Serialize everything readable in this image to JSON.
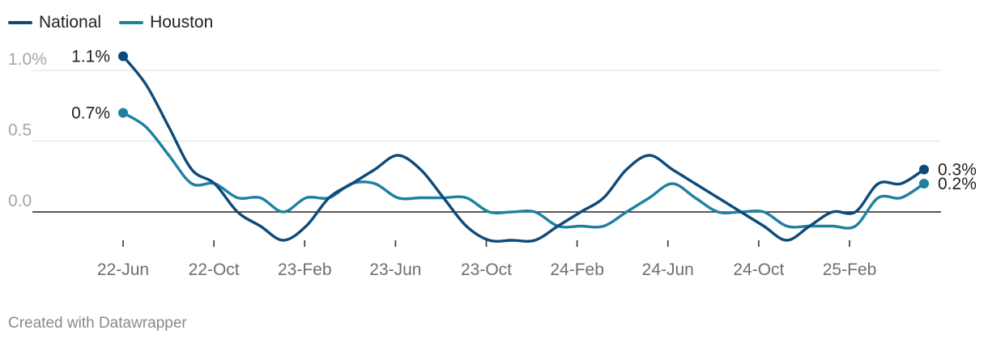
{
  "chart_data": {
    "type": "line",
    "x_ticks": [
      "22-Jun",
      "22-Oct",
      "23-Feb",
      "23-Jun",
      "23-Oct",
      "24-Feb",
      "24-Jun",
      "24-Oct",
      "25-Feb"
    ],
    "y_ticks": [
      "1.0%",
      "0.5",
      "0.0"
    ],
    "ylim": [
      -0.2,
      1.1
    ],
    "grid": true,
    "legend_position": "top-left",
    "series": [
      {
        "name": "National",
        "color": "#0d4a7a",
        "values": [
          1.1,
          0.9,
          0.6,
          0.3,
          0.2,
          0.0,
          -0.1,
          -0.2,
          -0.1,
          0.1,
          0.2,
          0.3,
          0.4,
          0.3,
          0.1,
          -0.1,
          -0.2,
          -0.2,
          -0.2,
          -0.1,
          0.0,
          0.1,
          0.3,
          0.4,
          0.3,
          0.2,
          0.1,
          0.0,
          -0.1,
          -0.2,
          -0.1,
          0.0,
          0.0,
          0.2,
          0.2,
          0.3
        ],
        "start_label": "1.1%",
        "end_label": "0.3%"
      },
      {
        "name": "Houston",
        "color": "#1f80a0",
        "values": [
          0.7,
          0.6,
          0.4,
          0.2,
          0.2,
          0.1,
          0.1,
          0.0,
          0.1,
          0.1,
          0.2,
          0.2,
          0.1,
          0.1,
          0.1,
          0.1,
          0.0,
          0.0,
          0.0,
          -0.1,
          -0.1,
          -0.1,
          0.0,
          0.1,
          0.2,
          0.1,
          0.0,
          0.0,
          0.0,
          -0.1,
          -0.1,
          -0.1,
          -0.1,
          0.1,
          0.1,
          0.2
        ],
        "start_label": "0.7%",
        "end_label": "0.2%"
      }
    ]
  },
  "footer": "Created with Datawrapper"
}
